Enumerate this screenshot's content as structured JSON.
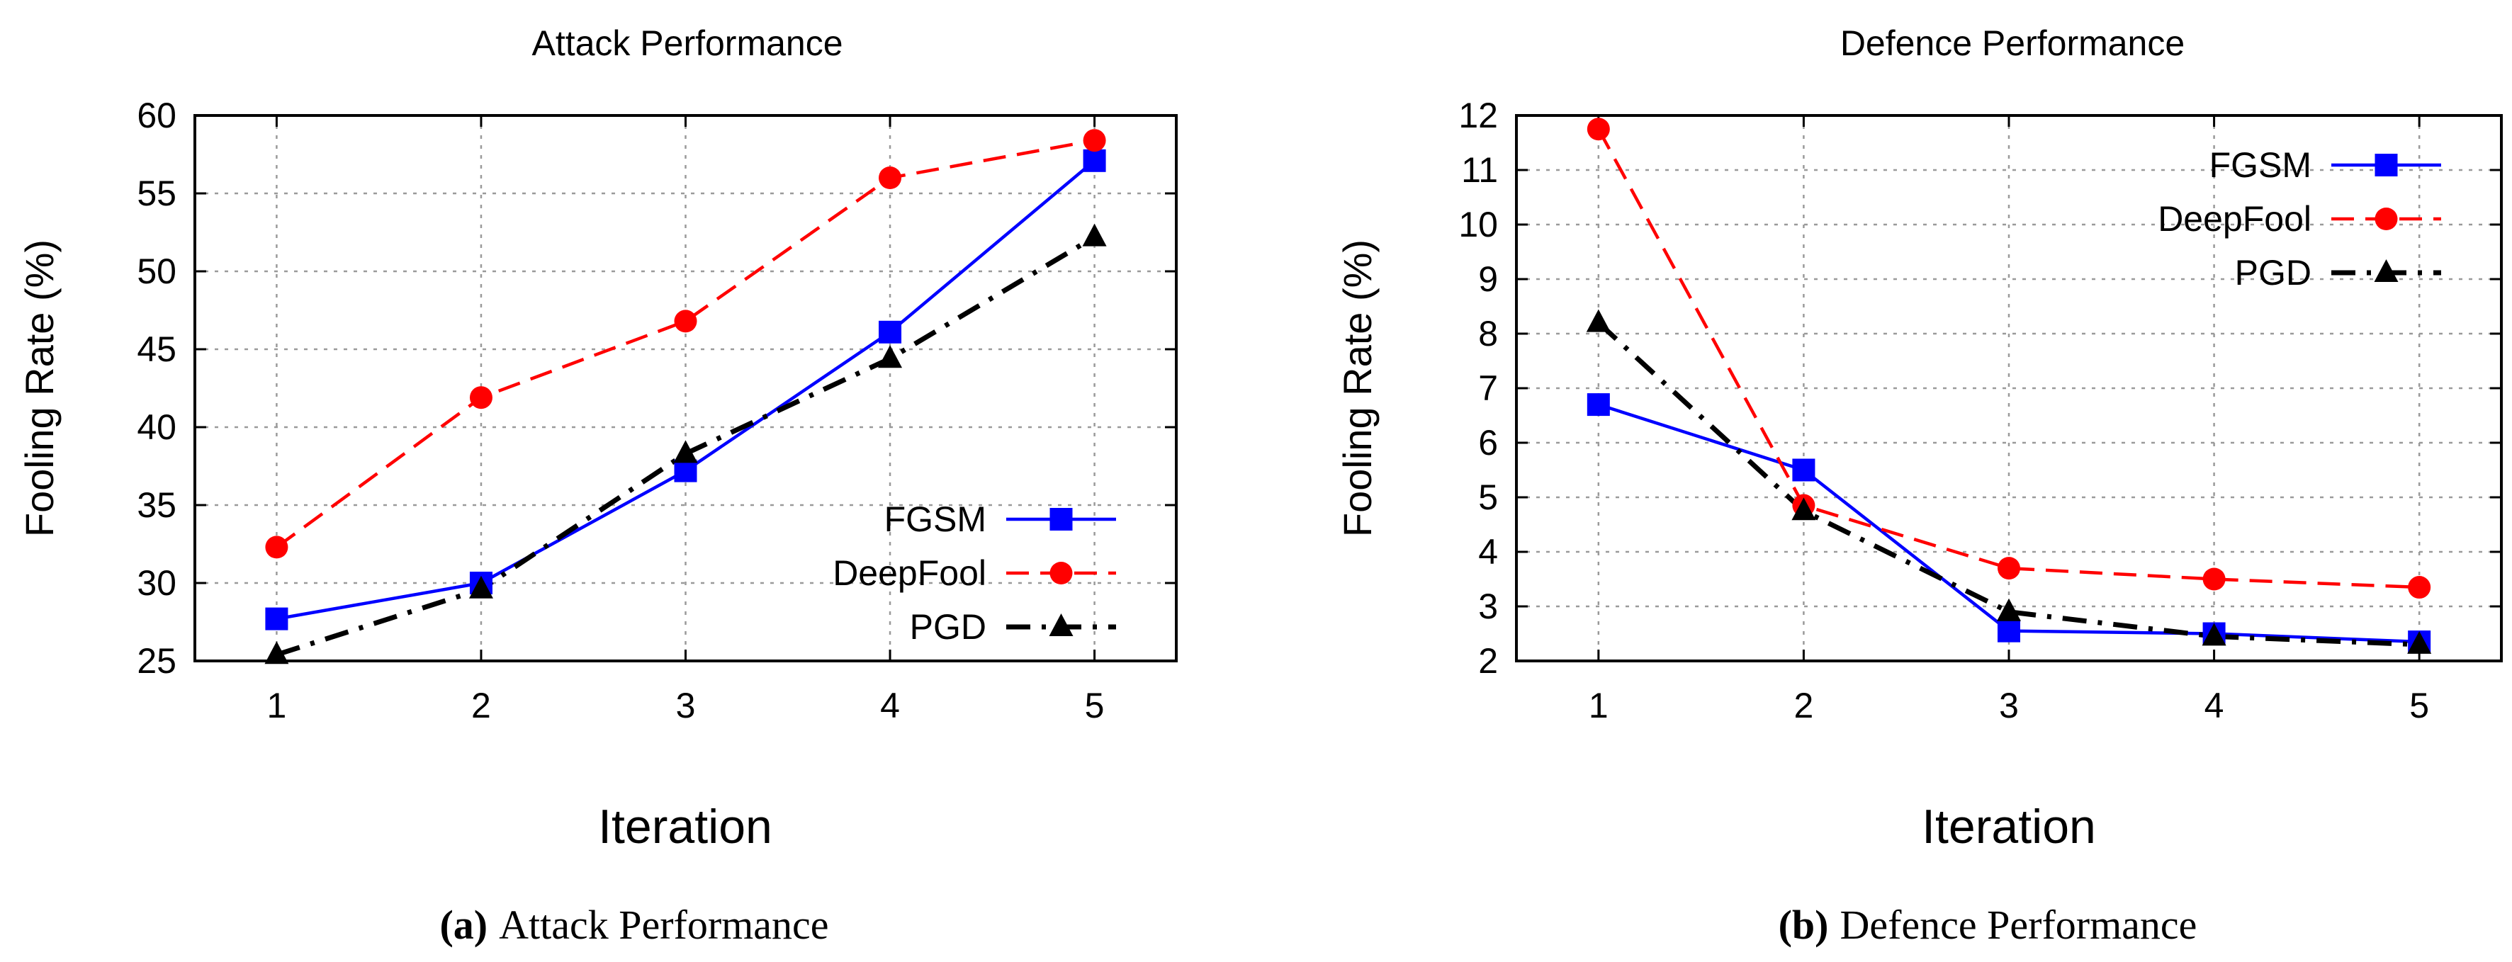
{
  "chart_data": [
    {
      "type": "line",
      "title": "Attack Performance",
      "xlabel": "Iteration",
      "ylabel": "Fooling Rate (%)",
      "x": [
        1,
        2,
        3,
        4,
        5
      ],
      "xlim": [
        0.6,
        5.4
      ],
      "ylim": [
        25,
        60
      ],
      "yticks": [
        25,
        30,
        35,
        40,
        45,
        50,
        55,
        60
      ],
      "grid": true,
      "legend_position": "bottom-right",
      "series": [
        {
          "name": "FGSM",
          "color": "#0000ff",
          "dash": "solid",
          "marker": "square",
          "values": [
            27.7,
            30.0,
            37.2,
            46.1,
            57.1
          ]
        },
        {
          "name": "DeepFool",
          "color": "#ff0000",
          "dash": "dashed",
          "marker": "circle",
          "values": [
            32.3,
            41.9,
            46.8,
            56.0,
            58.4
          ]
        },
        {
          "name": "PGD",
          "color": "#000000",
          "dash": "dashdot",
          "marker": "triangle",
          "values": [
            25.4,
            29.6,
            38.3,
            44.4,
            52.2
          ]
        }
      ],
      "caption_label": "(a)",
      "caption_text": "Attack Performance"
    },
    {
      "type": "line",
      "title": "Defence Performance",
      "xlabel": "Iteration",
      "ylabel": "Fooling Rate (%)",
      "x": [
        1,
        2,
        3,
        4,
        5
      ],
      "xlim": [
        0.6,
        5.4
      ],
      "ylim": [
        2,
        12
      ],
      "yticks": [
        2,
        3,
        4,
        5,
        6,
        7,
        8,
        9,
        10,
        11,
        12
      ],
      "grid": true,
      "legend_position": "top-right",
      "series": [
        {
          "name": "FGSM",
          "color": "#0000ff",
          "dash": "solid",
          "marker": "square",
          "values": [
            6.7,
            5.5,
            2.55,
            2.5,
            2.35
          ]
        },
        {
          "name": "DeepFool",
          "color": "#ff0000",
          "dash": "dashed",
          "marker": "circle",
          "values": [
            11.75,
            4.85,
            3.7,
            3.5,
            3.35
          ]
        },
        {
          "name": "PGD",
          "color": "#000000",
          "dash": "dashdot",
          "marker": "triangle",
          "values": [
            8.2,
            4.75,
            2.9,
            2.45,
            2.3
          ]
        }
      ],
      "caption_label": "(b)",
      "caption_text": "Defence Performance"
    }
  ]
}
